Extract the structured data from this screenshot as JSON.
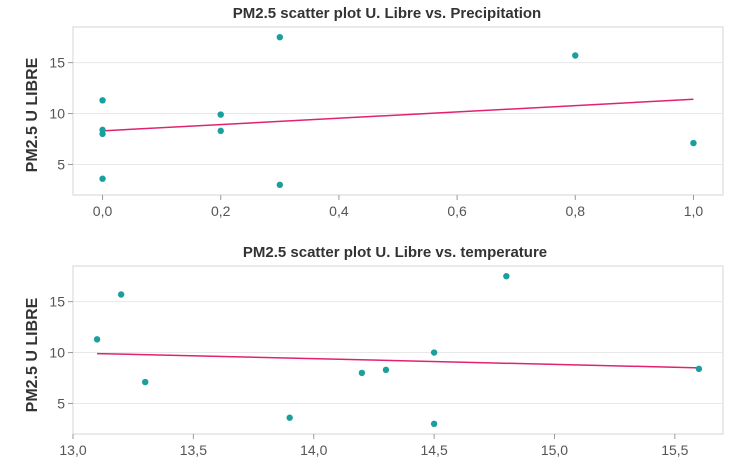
{
  "chart_data": [
    {
      "type": "scatter",
      "title": "PM2.5 scatter plot U. Libre vs. Precipitation",
      "ylabel": "PM2.5 U LIBRE",
      "xlabel": "",
      "xlim": [
        -0.05,
        1.05
      ],
      "ylim": [
        2,
        18.5
      ],
      "xticks": [
        0.0,
        0.2,
        0.4,
        0.6,
        0.8,
        1.0
      ],
      "xtick_labels": [
        "0,0",
        "0,2",
        "0,4",
        "0,6",
        "0,8",
        "1,0"
      ],
      "yticks": [
        5,
        10,
        15
      ],
      "ytick_labels": [
        "5",
        "10",
        "15"
      ],
      "grid": true,
      "point_color": "#1a9e9e",
      "line_color": "#e0226f",
      "points": [
        {
          "x": 0.0,
          "y": 11.3
        },
        {
          "x": 0.0,
          "y": 8.4
        },
        {
          "x": 0.0,
          "y": 8.0
        },
        {
          "x": 0.0,
          "y": 3.6
        },
        {
          "x": 0.2,
          "y": 9.9
        },
        {
          "x": 0.2,
          "y": 8.3
        },
        {
          "x": 0.3,
          "y": 17.5
        },
        {
          "x": 0.3,
          "y": 3.0
        },
        {
          "x": 0.8,
          "y": 15.7
        },
        {
          "x": 1.0,
          "y": 7.1
        }
      ],
      "trendline": {
        "x": [
          0.0,
          1.0
        ],
        "y": [
          8.3,
          11.4
        ]
      }
    },
    {
      "type": "scatter",
      "title": "PM2.5 scatter plot U. Libre vs. temperature",
      "ylabel": "PM2.5 U LIBRE",
      "xlabel": "",
      "xlim": [
        13.0,
        15.7
      ],
      "ylim": [
        2,
        18.5
      ],
      "xticks": [
        13.0,
        13.5,
        14.0,
        14.5,
        15.0,
        15.5
      ],
      "xtick_labels": [
        "13,0",
        "13,5",
        "14,0",
        "14,5",
        "15,0",
        "15,5"
      ],
      "yticks": [
        5,
        10,
        15
      ],
      "ytick_labels": [
        "5",
        "10",
        "15"
      ],
      "grid": true,
      "point_color": "#1a9e9e",
      "line_color": "#e0226f",
      "points": [
        {
          "x": 13.1,
          "y": 11.3
        },
        {
          "x": 13.2,
          "y": 15.7
        },
        {
          "x": 13.3,
          "y": 7.1
        },
        {
          "x": 13.9,
          "y": 3.6
        },
        {
          "x": 14.2,
          "y": 8.0
        },
        {
          "x": 14.3,
          "y": 8.3
        },
        {
          "x": 14.5,
          "y": 10.0
        },
        {
          "x": 14.5,
          "y": 3.0
        },
        {
          "x": 14.8,
          "y": 17.5
        },
        {
          "x": 15.6,
          "y": 8.4
        }
      ],
      "trendline": {
        "x": [
          13.1,
          15.6
        ],
        "y": [
          9.9,
          8.5
        ]
      }
    }
  ]
}
